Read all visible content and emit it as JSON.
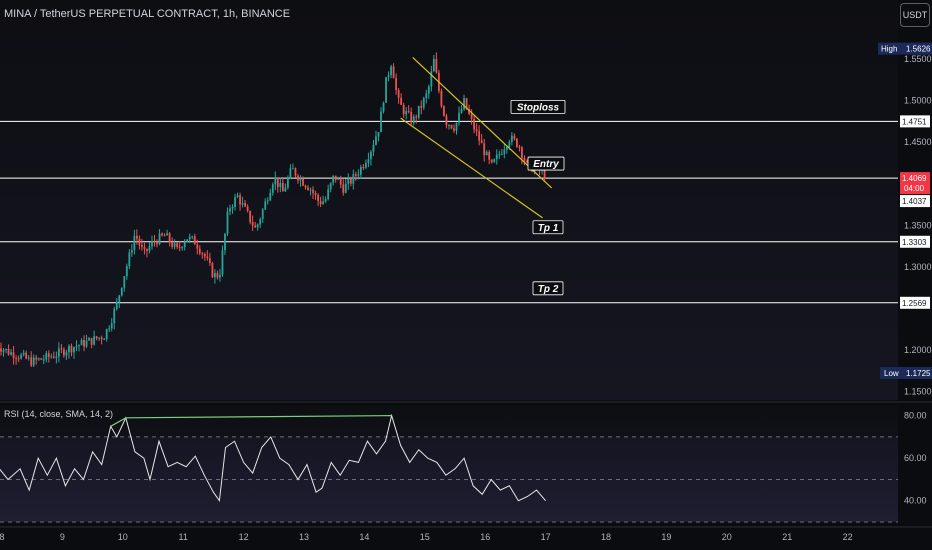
{
  "header": {
    "symbol_title": "MINA / TetherUS PERPETUAL CONTRACT, 1h, BINANCE",
    "currency_button": "USDT"
  },
  "colors": {
    "background": "#0b0c10",
    "up": "#26a69a",
    "down": "#ef5350",
    "level_line": "#ffffff",
    "channel": "#d6c21e",
    "rsi_line": "#e6e6e6",
    "rsi_overbought": "#7bd17b",
    "current_price": "#f23645",
    "high_low_badge": "#1c2a5a"
  },
  "chart_data": {
    "type": "candlestick",
    "y_axis_ticks": [
      "1.5500",
      "1.5000",
      "1.4500",
      "1.3500",
      "1.3000",
      "1.2000",
      "1.1500"
    ],
    "x_axis_ticks": [
      "8",
      "9",
      "10",
      "11",
      "12",
      "13",
      "14",
      "15",
      "16",
      "17",
      "18",
      "19",
      "20",
      "21",
      "22"
    ],
    "ylim": [
      1.14,
      1.585
    ],
    "high": {
      "label": "High",
      "value": "1.5626"
    },
    "low": {
      "label": "Low",
      "value": "1.1725"
    },
    "current_price": {
      "value": "1.4069",
      "countdown": "04:00",
      "second": "1.4037"
    },
    "levels": [
      {
        "name": "Stoploss",
        "price": 1.4751,
        "label": "1.4751"
      },
      {
        "name": "Entry",
        "price": 1.4069,
        "label": ""
      },
      {
        "name": "Tp 1",
        "price": 1.3303,
        "label": "1.3303"
      },
      {
        "name": "Tp 2",
        "price": 1.2569,
        "label": "1.2569"
      }
    ],
    "channel_lines": [
      {
        "from": [
          14.8,
          1.552
        ],
        "to": [
          17.1,
          1.395
        ]
      },
      {
        "from": [
          14.6,
          1.479
        ],
        "to": [
          16.95,
          1.359
        ]
      }
    ],
    "price_path": [
      [
        7.9,
        1.207
      ],
      [
        8.1,
        1.198
      ],
      [
        8.3,
        1.193
      ],
      [
        8.5,
        1.186
      ],
      [
        8.7,
        1.19
      ],
      [
        8.9,
        1.195
      ],
      [
        9.1,
        1.202
      ],
      [
        9.3,
        1.207
      ],
      [
        9.5,
        1.212
      ],
      [
        9.7,
        1.218
      ],
      [
        9.8,
        1.235
      ],
      [
        9.9,
        1.255
      ],
      [
        10.0,
        1.285
      ],
      [
        10.1,
        1.31
      ],
      [
        10.2,
        1.34
      ],
      [
        10.35,
        1.315
      ],
      [
        10.5,
        1.33
      ],
      [
        10.7,
        1.338
      ],
      [
        10.9,
        1.32
      ],
      [
        11.05,
        1.336
      ],
      [
        11.2,
        1.33
      ],
      [
        11.35,
        1.314
      ],
      [
        11.5,
        1.29
      ],
      [
        11.6,
        1.29
      ],
      [
        11.75,
        1.37
      ],
      [
        11.9,
        1.385
      ],
      [
        12.05,
        1.365
      ],
      [
        12.2,
        1.345
      ],
      [
        12.35,
        1.375
      ],
      [
        12.5,
        1.408
      ],
      [
        12.65,
        1.39
      ],
      [
        12.8,
        1.418
      ],
      [
        12.95,
        1.405
      ],
      [
        13.1,
        1.395
      ],
      [
        13.25,
        1.378
      ],
      [
        13.35,
        1.38
      ],
      [
        13.5,
        1.41
      ],
      [
        13.65,
        1.395
      ],
      [
        13.8,
        1.405
      ],
      [
        13.95,
        1.42
      ],
      [
        14.1,
        1.44
      ],
      [
        14.25,
        1.47
      ],
      [
        14.35,
        1.52
      ],
      [
        14.45,
        1.548
      ],
      [
        14.55,
        1.5
      ],
      [
        14.65,
        1.488
      ],
      [
        14.8,
        1.475
      ],
      [
        14.95,
        1.495
      ],
      [
        15.05,
        1.51
      ],
      [
        15.15,
        1.548
      ],
      [
        15.25,
        1.505
      ],
      [
        15.35,
        1.475
      ],
      [
        15.5,
        1.468
      ],
      [
        15.65,
        1.498
      ],
      [
        15.8,
        1.47
      ],
      [
        15.95,
        1.445
      ],
      [
        16.1,
        1.42
      ],
      [
        16.25,
        1.438
      ],
      [
        16.4,
        1.455
      ],
      [
        16.55,
        1.448
      ],
      [
        16.7,
        1.42
      ],
      [
        16.85,
        1.42
      ],
      [
        17.0,
        1.41
      ]
    ],
    "rsi": {
      "title": "RSI (14, close, SMA, 14, 2)",
      "y_ticks": [
        "80.00",
        "60.00",
        "40.00"
      ],
      "ylim": [
        30,
        85
      ],
      "upper_band": 70,
      "middle_band": 50,
      "lower_band": 30,
      "path": [
        [
          7.9,
          57
        ],
        [
          8.1,
          50
        ],
        [
          8.3,
          55
        ],
        [
          8.45,
          45
        ],
        [
          8.6,
          60
        ],
        [
          8.75,
          52
        ],
        [
          8.9,
          60
        ],
        [
          9.05,
          47
        ],
        [
          9.2,
          55
        ],
        [
          9.35,
          50
        ],
        [
          9.5,
          63
        ],
        [
          9.65,
          57
        ],
        [
          9.8,
          75
        ],
        [
          9.9,
          70
        ],
        [
          10.05,
          79
        ],
        [
          10.2,
          63
        ],
        [
          10.35,
          60
        ],
        [
          10.45,
          50
        ],
        [
          10.6,
          68
        ],
        [
          10.75,
          56
        ],
        [
          10.9,
          58
        ],
        [
          11.05,
          56
        ],
        [
          11.2,
          61
        ],
        [
          11.35,
          52
        ],
        [
          11.5,
          44
        ],
        [
          11.6,
          40
        ],
        [
          11.7,
          65
        ],
        [
          11.85,
          68
        ],
        [
          12.0,
          58
        ],
        [
          12.15,
          53
        ],
        [
          12.3,
          65
        ],
        [
          12.45,
          70
        ],
        [
          12.6,
          60
        ],
        [
          12.75,
          57
        ],
        [
          12.9,
          50
        ],
        [
          13.05,
          57
        ],
        [
          13.2,
          44
        ],
        [
          13.3,
          46
        ],
        [
          13.45,
          58
        ],
        [
          13.6,
          52
        ],
        [
          13.75,
          59
        ],
        [
          13.9,
          58
        ],
        [
          14.05,
          68
        ],
        [
          14.2,
          62
        ],
        [
          14.35,
          68
        ],
        [
          14.45,
          80
        ],
        [
          14.6,
          66
        ],
        [
          14.75,
          58
        ],
        [
          14.9,
          64
        ],
        [
          15.05,
          60
        ],
        [
          15.2,
          58
        ],
        [
          15.35,
          52
        ],
        [
          15.5,
          55
        ],
        [
          15.65,
          60
        ],
        [
          15.8,
          47
        ],
        [
          15.95,
          43
        ],
        [
          16.1,
          50
        ],
        [
          16.25,
          45
        ],
        [
          16.4,
          47
        ],
        [
          16.55,
          40
        ],
        [
          16.7,
          42
        ],
        [
          16.85,
          45
        ],
        [
          17.0,
          40
        ]
      ]
    }
  }
}
